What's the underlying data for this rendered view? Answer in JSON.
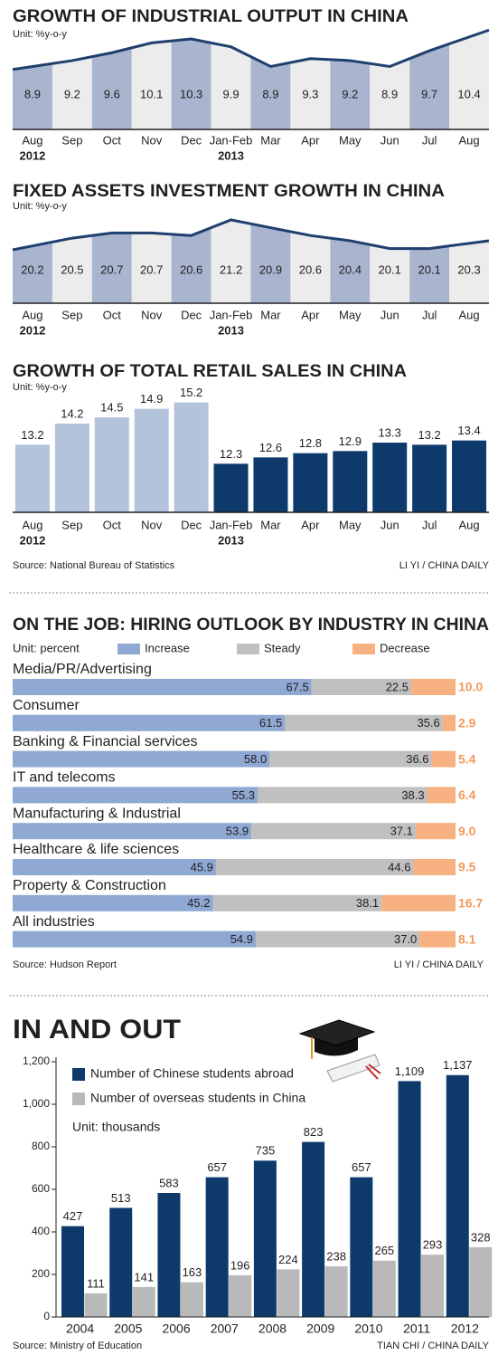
{
  "chart_data": [
    {
      "type": "line",
      "title": "GROWTH OF INDUSTRIAL OUTPUT IN CHINA",
      "subtitle": "Unit: %y-o-y",
      "categories": [
        "Aug",
        "Sep",
        "Oct",
        "Nov",
        "Dec",
        "Jan-Feb",
        "Mar",
        "Apr",
        "May",
        "Jun",
        "Jul",
        "Aug"
      ],
      "category_years": [
        "2012",
        null,
        null,
        null,
        null,
        "2013",
        null,
        null,
        null,
        null,
        null,
        null
      ],
      "values": [
        8.9,
        9.2,
        9.6,
        10.1,
        10.3,
        9.9,
        8.9,
        9.3,
        9.2,
        8.9,
        9.7,
        10.4
      ],
      "line_color": "#1f3f6e",
      "column_colors": [
        "#a9b5cf",
        "#ececec"
      ],
      "ylim": [
        5.7,
        10.9
      ]
    },
    {
      "type": "line",
      "title": "FIXED ASSETS INVESTMENT GROWTH IN CHINA",
      "subtitle": "Unit: %y-o-y",
      "categories": [
        "Aug",
        "Sep",
        "Oct",
        "Nov",
        "Dec",
        "Jan-Feb",
        "Mar",
        "Apr",
        "May",
        "Jun",
        "Jul",
        "Aug"
      ],
      "category_years": [
        "2012",
        null,
        null,
        null,
        null,
        "2013",
        null,
        null,
        null,
        null,
        null,
        null
      ],
      "values": [
        20.2,
        20.5,
        20.7,
        20.7,
        20.6,
        21.2,
        20.9,
        20.6,
        20.4,
        20.1,
        20.1,
        20.3
      ],
      "line_color": "#1f3f6e",
      "column_colors": [
        "#a9b5cf",
        "#ececec"
      ],
      "ylim": [
        18,
        21.65
      ]
    },
    {
      "type": "bar",
      "title": "GROWTH OF TOTAL RETAIL SALES IN CHINA",
      "subtitle": "Unit: %y-o-y",
      "categories": [
        "Aug",
        "Sep",
        "Oct",
        "Nov",
        "Dec",
        "Jan-Feb",
        "Mar",
        "Apr",
        "May",
        "Jun",
        "Jul",
        "Aug"
      ],
      "category_years": [
        "2012",
        null,
        null,
        null,
        null,
        "2013",
        null,
        null,
        null,
        null,
        null,
        null
      ],
      "values": [
        13.2,
        14.2,
        14.5,
        14.9,
        15.2,
        12.3,
        12.6,
        12.8,
        12.9,
        13.3,
        13.2,
        13.4
      ],
      "colors": [
        "#b3c3dc",
        "#b3c3dc",
        "#b3c3dc",
        "#b3c3dc",
        "#b3c3dc",
        "#0d3a6b",
        "#0d3a6b",
        "#0d3a6b",
        "#0d3a6b",
        "#0d3a6b",
        "#0d3a6b",
        "#0d3a6b"
      ],
      "ylim": [
        10,
        16
      ],
      "source": "Source: National Bureau of Statistics",
      "credit": "LI YI / CHINA DAILY"
    },
    {
      "type": "stacked-barh",
      "title": "ON THE JOB: HIRING OUTLOOK BY INDUSTRY IN CHINA",
      "subtitle": "Unit: percent",
      "categories": [
        "Media/PR/Advertising",
        "Consumer",
        "Banking & Financial services",
        "IT and telecoms",
        "Manufacturing & Industrial",
        "Healthcare & life sciences",
        "Property & Construction",
        "All industries"
      ],
      "series": [
        {
          "name": "Increase",
          "color": "#8fa8d4",
          "values": [
            67.5,
            61.5,
            58.0,
            55.3,
            53.9,
            45.9,
            45.2,
            54.9
          ],
          "value_labels": [
            "67.5",
            "61.5",
            "58.0",
            "55.3",
            "53.9",
            "45.9",
            "45.2",
            "54.9"
          ]
        },
        {
          "name": "Steady",
          "color": "#c0c0c0",
          "values": [
            22.5,
            35.6,
            36.6,
            38.3,
            37.1,
            44.6,
            38.1,
            37.0
          ],
          "value_labels": [
            "22.5",
            "35.6",
            "36.6",
            "38.3",
            "37.1",
            "44.6",
            "38.1",
            "37.0"
          ]
        },
        {
          "name": "Decrease",
          "color": "#f7b07f",
          "values": [
            10.0,
            2.9,
            5.4,
            6.4,
            9.0,
            9.5,
            16.7,
            8.1
          ],
          "value_labels": [
            "10.0",
            "2.9",
            "5.4",
            "6.4",
            "9.0",
            "9.5",
            "16.7",
            "8.1"
          ]
        }
      ],
      "xlim": [
        0,
        100
      ],
      "source": "Source: Hudson Report",
      "credit": "LI YI / CHINA DAILY"
    },
    {
      "type": "grouped-bar",
      "title": "IN AND OUT",
      "annotation": "Unit: thousands",
      "categories": [
        "2004",
        "2005",
        "2006",
        "2007",
        "2008",
        "2009",
        "2010",
        "2011",
        "2012"
      ],
      "series": [
        {
          "name": "Number of Chinese students abroad",
          "color": "#0d3a6b",
          "values": [
            427,
            513,
            583,
            657,
            735,
            823,
            657,
            1109,
            1137
          ],
          "value_labels": [
            "427",
            "513",
            "583",
            "657",
            "735",
            "823",
            "657",
            "1,109",
            "1,137"
          ]
        },
        {
          "name": "Number of overseas students in China",
          "color": "#b9b9b9",
          "values": [
            111,
            141,
            163,
            196,
            224,
            238,
            265,
            293,
            328
          ]
        }
      ],
      "ylim": [
        0,
        1200
      ],
      "yticks": [
        0,
        200,
        400,
        600,
        800,
        {
          "value": 1000,
          "label": "1,000"
        },
        {
          "value": 1200,
          "label": "1,200"
        }
      ],
      "source": "Source: Ministry of Education",
      "credit": "TIAN CHI / CHINA DAILY"
    }
  ]
}
